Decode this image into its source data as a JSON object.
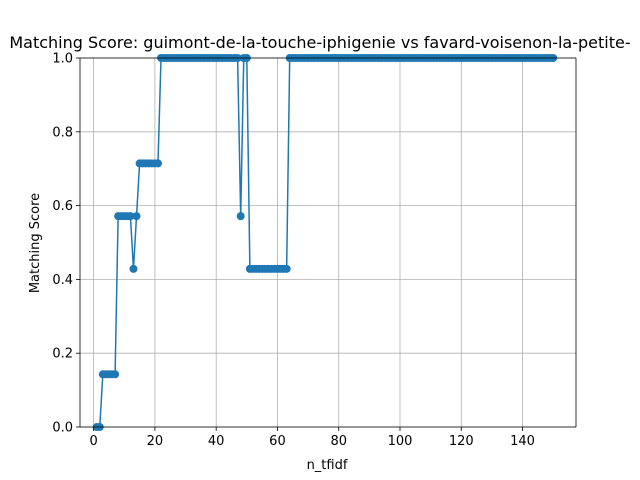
{
  "chart_data": {
    "type": "line",
    "title": "Matching Score: guimont-de-la-touche-iphigenie vs favard-voisenon-la-petite-",
    "xlabel": "n_tfidf",
    "ylabel": "Matching Score",
    "xlim": [
      -4.45,
      157.45
    ],
    "ylim": [
      0,
      1
    ],
    "xticks": [
      0,
      20,
      40,
      60,
      80,
      100,
      120,
      140
    ],
    "yticks": [
      0.0,
      0.2,
      0.4,
      0.6,
      0.8,
      1.0
    ],
    "xtick_labels": [
      "0",
      "20",
      "40",
      "60",
      "80",
      "100",
      "120",
      "140"
    ],
    "ytick_labels": [
      "0.0",
      "0.2",
      "0.4",
      "0.6",
      "0.8",
      "1.0"
    ],
    "grid": true,
    "line_color": "#1f77b4",
    "marker": "circle",
    "series": [
      {
        "runs": [
          {
            "start": 1,
            "end": 2,
            "value": 0.0
          },
          {
            "start": 3,
            "end": 7,
            "value": 0.142857
          },
          {
            "start": 8,
            "end": 12,
            "value": 0.571429
          },
          {
            "start": 13,
            "end": 13,
            "value": 0.428571
          },
          {
            "start": 14,
            "end": 14,
            "value": 0.571429
          },
          {
            "start": 15,
            "end": 21,
            "value": 0.714286
          },
          {
            "start": 22,
            "end": 47,
            "value": 1.0
          },
          {
            "start": 48,
            "end": 48,
            "value": 0.571429
          },
          {
            "start": 49,
            "end": 50,
            "value": 1.0
          },
          {
            "start": 51,
            "end": 63,
            "value": 0.428571
          },
          {
            "start": 64,
            "end": 150,
            "value": 1.0
          }
        ]
      }
    ]
  }
}
